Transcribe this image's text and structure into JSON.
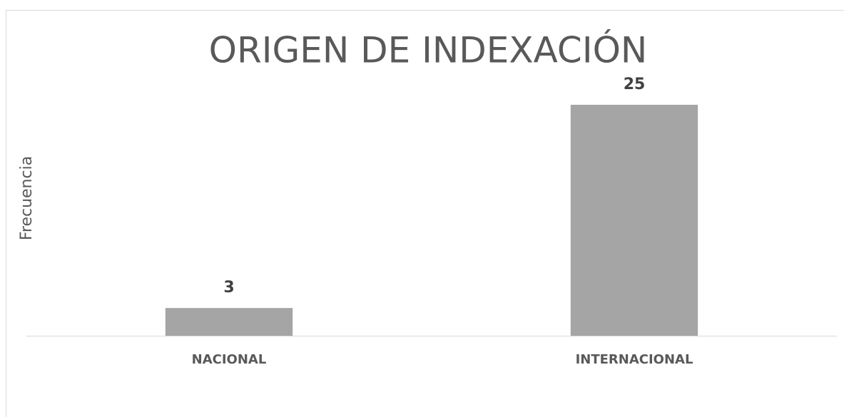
{
  "chart_data": {
    "type": "bar",
    "title": "ORIGEN DE INDEXACIÓN",
    "y_label": "Frecuencia",
    "categories": [
      "NACIONAL",
      "INTERNACIONAL"
    ],
    "values": [
      3,
      25
    ],
    "color": "#a5a5a5",
    "ylim": [
      0,
      25
    ]
  }
}
